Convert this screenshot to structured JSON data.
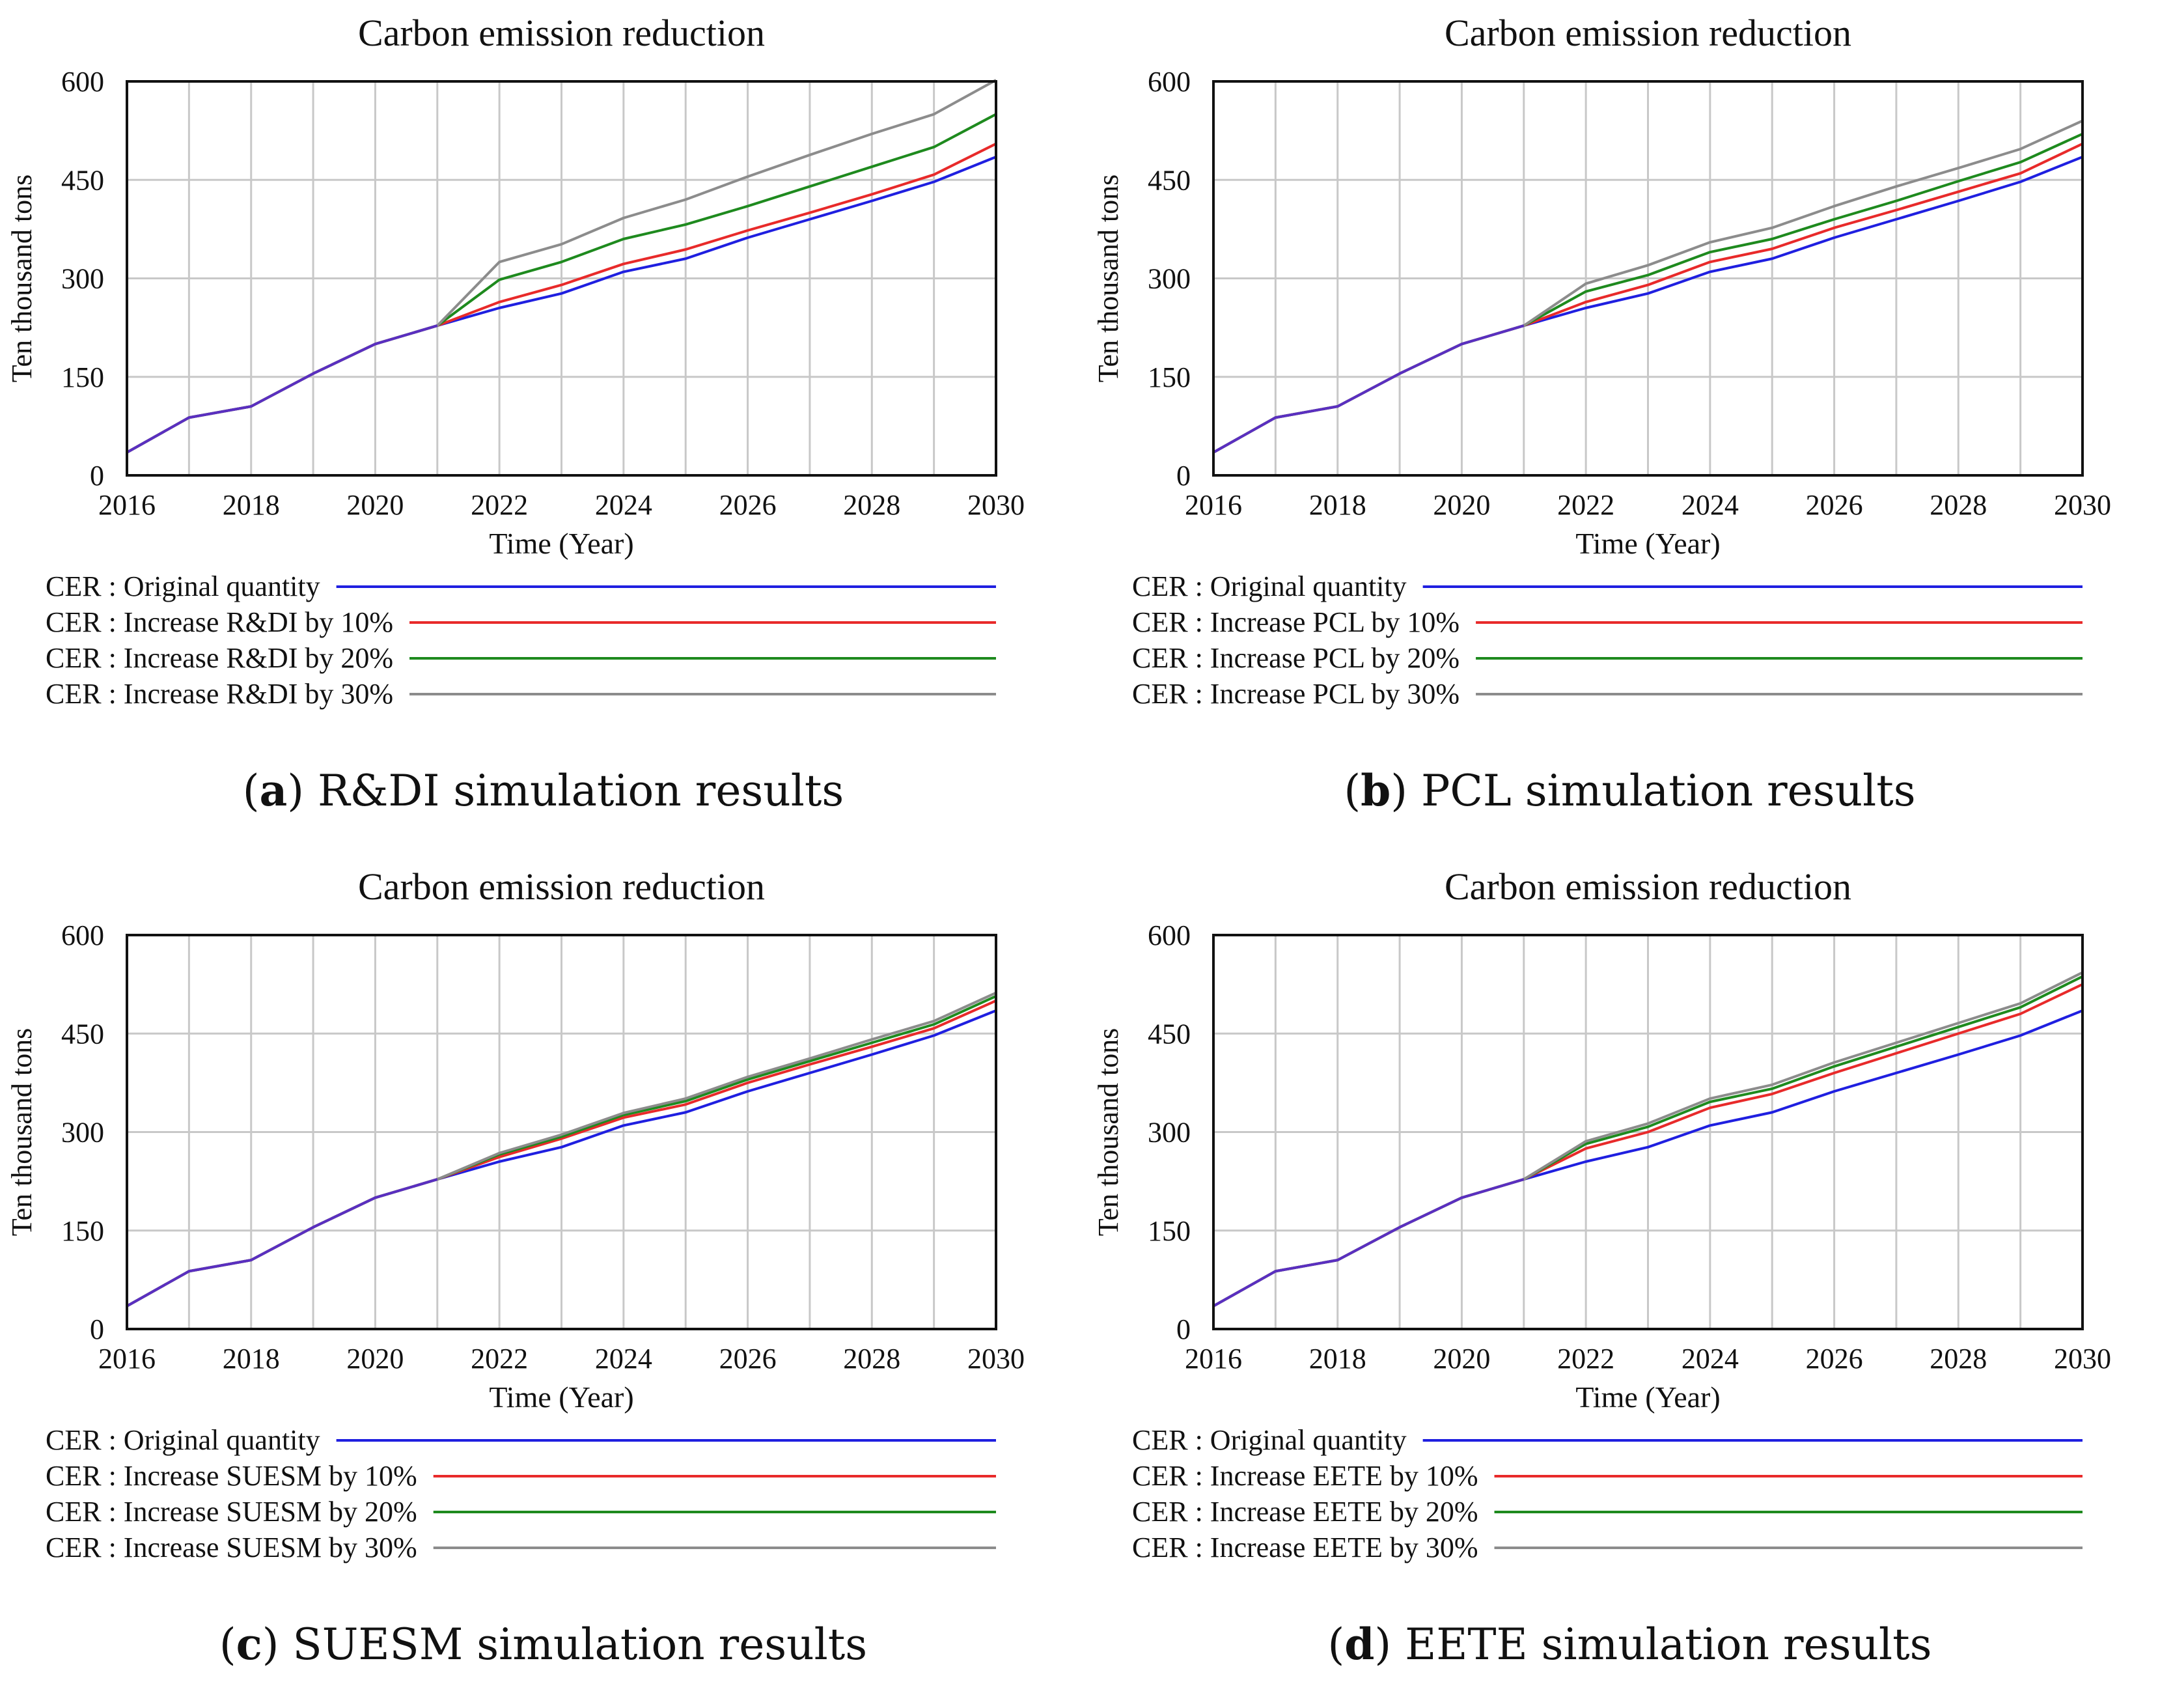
{
  "chart_data": [
    {
      "type": "line",
      "title": "Carbon emission reduction",
      "xlabel": "Time (Year)",
      "ylabel": "Ten thousand tons",
      "xlim": [
        2016,
        2030
      ],
      "ylim": [
        0,
        600
      ],
      "x_ticks": [
        "2016",
        "2018",
        "2020",
        "2022",
        "2024",
        "2026",
        "2028",
        "2030"
      ],
      "y_ticks": [
        "0",
        "150",
        "300",
        "450",
        "600"
      ],
      "x": [
        2016,
        2017,
        2018,
        2019,
        2020,
        2021,
        2022,
        2023,
        2024,
        2025,
        2026,
        2027,
        2028,
        2029,
        2030
      ],
      "series": [
        {
          "name": "CER : Original quantity",
          "color": "#1f1fe0",
          "values": [
            35,
            88,
            105,
            155,
            200,
            228,
            255,
            277,
            310,
            330,
            362,
            390,
            418,
            447,
            485
          ]
        },
        {
          "name": "CER : Increase R&DI by 10%",
          "color": "#e82a2a",
          "values": [
            35,
            88,
            105,
            155,
            200,
            228,
            264,
            290,
            322,
            344,
            373,
            400,
            428,
            458,
            505
          ]
        },
        {
          "name": "CER : Increase R&DI by 20%",
          "color": "#1e8a1e",
          "values": [
            35,
            88,
            105,
            155,
            200,
            228,
            298,
            325,
            360,
            382,
            410,
            440,
            470,
            500,
            550
          ]
        },
        {
          "name": "CER : Increase R&DI by 30%",
          "color": "#8c8c8c",
          "values": [
            35,
            88,
            105,
            155,
            200,
            228,
            325,
            352,
            392,
            420,
            455,
            488,
            520,
            550,
            602
          ]
        }
      ],
      "caption_letter": "a",
      "caption_text": "R&DI simulation results"
    },
    {
      "type": "line",
      "title": "Carbon emission reduction",
      "xlabel": "Time (Year)",
      "ylabel": "Ten thousand tons",
      "xlim": [
        2016,
        2030
      ],
      "ylim": [
        0,
        600
      ],
      "x_ticks": [
        "2016",
        "2018",
        "2020",
        "2022",
        "2024",
        "2026",
        "2028",
        "2030"
      ],
      "y_ticks": [
        "0",
        "150",
        "300",
        "450",
        "600"
      ],
      "x": [
        2016,
        2017,
        2018,
        2019,
        2020,
        2021,
        2022,
        2023,
        2024,
        2025,
        2026,
        2027,
        2028,
        2029,
        2030
      ],
      "series": [
        {
          "name": "CER : Original quantity",
          "color": "#1f1fe0",
          "values": [
            35,
            88,
            105,
            155,
            200,
            228,
            255,
            277,
            310,
            330,
            362,
            390,
            418,
            447,
            485
          ]
        },
        {
          "name": "CER : Increase PCL by 10%",
          "color": "#e82a2a",
          "values": [
            35,
            88,
            105,
            155,
            200,
            228,
            264,
            290,
            325,
            345,
            377,
            404,
            432,
            460,
            505
          ]
        },
        {
          "name": "CER : Increase PCL by 20%",
          "color": "#1e8a1e",
          "values": [
            35,
            88,
            105,
            155,
            200,
            228,
            280,
            305,
            340,
            360,
            390,
            418,
            448,
            477,
            520
          ]
        },
        {
          "name": "CER : Increase PCL by 30%",
          "color": "#8c8c8c",
          "values": [
            35,
            88,
            105,
            155,
            200,
            228,
            292,
            320,
            355,
            377,
            410,
            440,
            468,
            497,
            540
          ]
        }
      ],
      "caption_letter": "b",
      "caption_text": "PCL simulation results"
    },
    {
      "type": "line",
      "title": "Carbon emission reduction",
      "xlabel": "Time (Year)",
      "ylabel": "Ten thousand tons",
      "xlim": [
        2016,
        2030
      ],
      "ylim": [
        0,
        600
      ],
      "x_ticks": [
        "2016",
        "2018",
        "2020",
        "2022",
        "2024",
        "2026",
        "2028",
        "2030"
      ],
      "y_ticks": [
        "0",
        "150",
        "300",
        "450",
        "600"
      ],
      "x": [
        2016,
        2017,
        2018,
        2019,
        2020,
        2021,
        2022,
        2023,
        2024,
        2025,
        2026,
        2027,
        2028,
        2029,
        2030
      ],
      "series": [
        {
          "name": "CER : Original quantity",
          "color": "#1f1fe0",
          "values": [
            35,
            88,
            105,
            155,
            200,
            228,
            255,
            277,
            310,
            330,
            362,
            390,
            418,
            447,
            485
          ]
        },
        {
          "name": "CER : Increase SUESM by 10%",
          "color": "#e82a2a",
          "values": [
            35,
            88,
            105,
            155,
            200,
            228,
            262,
            290,
            322,
            342,
            375,
            403,
            430,
            458,
            500
          ]
        },
        {
          "name": "CER : Increase SUESM by 20%",
          "color": "#1e8a1e",
          "values": [
            35,
            88,
            105,
            155,
            200,
            228,
            266,
            293,
            326,
            347,
            380,
            408,
            436,
            464,
            507
          ]
        },
        {
          "name": "CER : Increase SUESM by 30%",
          "color": "#8c8c8c",
          "values": [
            35,
            88,
            105,
            155,
            200,
            228,
            268,
            296,
            329,
            351,
            384,
            412,
            441,
            469,
            512
          ]
        }
      ],
      "caption_letter": "c",
      "caption_text": "SUESM simulation results"
    },
    {
      "type": "line",
      "title": "Carbon emission reduction",
      "xlabel": "Time (Year)",
      "ylabel": "Ten thousand tons",
      "xlim": [
        2016,
        2030
      ],
      "ylim": [
        0,
        600
      ],
      "x_ticks": [
        "2016",
        "2018",
        "2020",
        "2022",
        "2024",
        "2026",
        "2028",
        "2030"
      ],
      "y_ticks": [
        "0",
        "150",
        "300",
        "450",
        "600"
      ],
      "x": [
        2016,
        2017,
        2018,
        2019,
        2020,
        2021,
        2022,
        2023,
        2024,
        2025,
        2026,
        2027,
        2028,
        2029,
        2030
      ],
      "series": [
        {
          "name": "CER : Original quantity",
          "color": "#1f1fe0",
          "values": [
            35,
            88,
            105,
            155,
            200,
            228,
            255,
            277,
            310,
            330,
            362,
            390,
            418,
            447,
            485
          ]
        },
        {
          "name": "CER : Increase EETE by 10%",
          "color": "#e82a2a",
          "values": [
            35,
            88,
            105,
            155,
            200,
            228,
            275,
            300,
            337,
            358,
            390,
            420,
            450,
            480,
            525
          ]
        },
        {
          "name": "CER : Increase EETE by 20%",
          "color": "#1e8a1e",
          "values": [
            35,
            88,
            105,
            155,
            200,
            228,
            282,
            308,
            346,
            366,
            400,
            430,
            460,
            490,
            537
          ]
        },
        {
          "name": "CER : Increase EETE by 30%",
          "color": "#8c8c8c",
          "values": [
            35,
            88,
            105,
            155,
            200,
            228,
            286,
            313,
            351,
            372,
            406,
            436,
            466,
            496,
            543
          ]
        }
      ],
      "caption_letter": "d",
      "caption_text": "EETE simulation results"
    }
  ]
}
